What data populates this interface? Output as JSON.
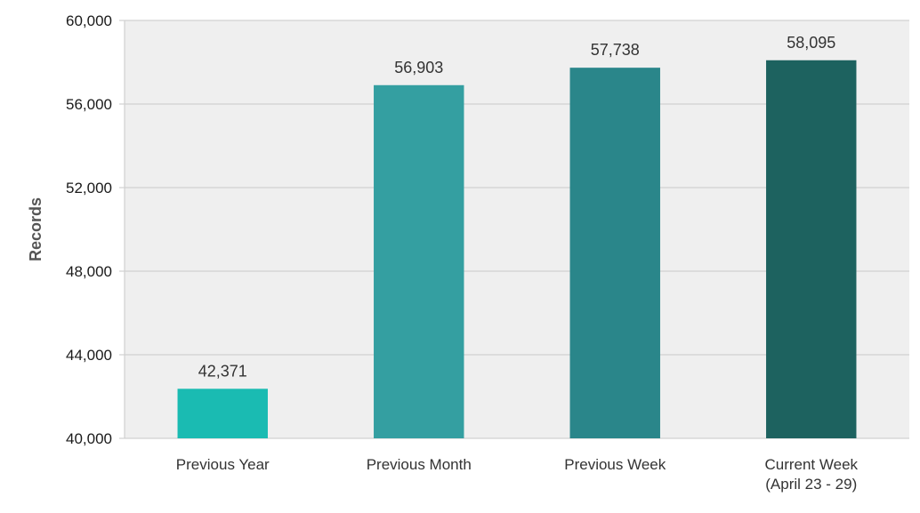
{
  "chart_data": {
    "type": "bar",
    "title": "",
    "xlabel": "",
    "ylabel": "Records",
    "ylim": [
      40000,
      60000
    ],
    "yticks": [
      40000,
      44000,
      48000,
      52000,
      56000,
      60000
    ],
    "ytick_labels": [
      "40,000",
      "44,000",
      "48,000",
      "52,000",
      "56,000",
      "60,000"
    ],
    "grid": true,
    "legend": "none",
    "categories": [
      [
        "Previous Year"
      ],
      [
        "Previous Month"
      ],
      [
        "Previous Week"
      ],
      [
        "Current Week",
        "(April 23 - 29)"
      ]
    ],
    "values": [
      42371,
      56903,
      57738,
      58095
    ],
    "value_labels": [
      "42,371",
      "56,903",
      "57,738",
      "58,095"
    ],
    "colors": [
      "#1ABBB2",
      "#349FA1",
      "#2A868A",
      "#1D625F"
    ],
    "plot_background": "#EFEFEF",
    "gridline_color": "#D0D0D0"
  }
}
